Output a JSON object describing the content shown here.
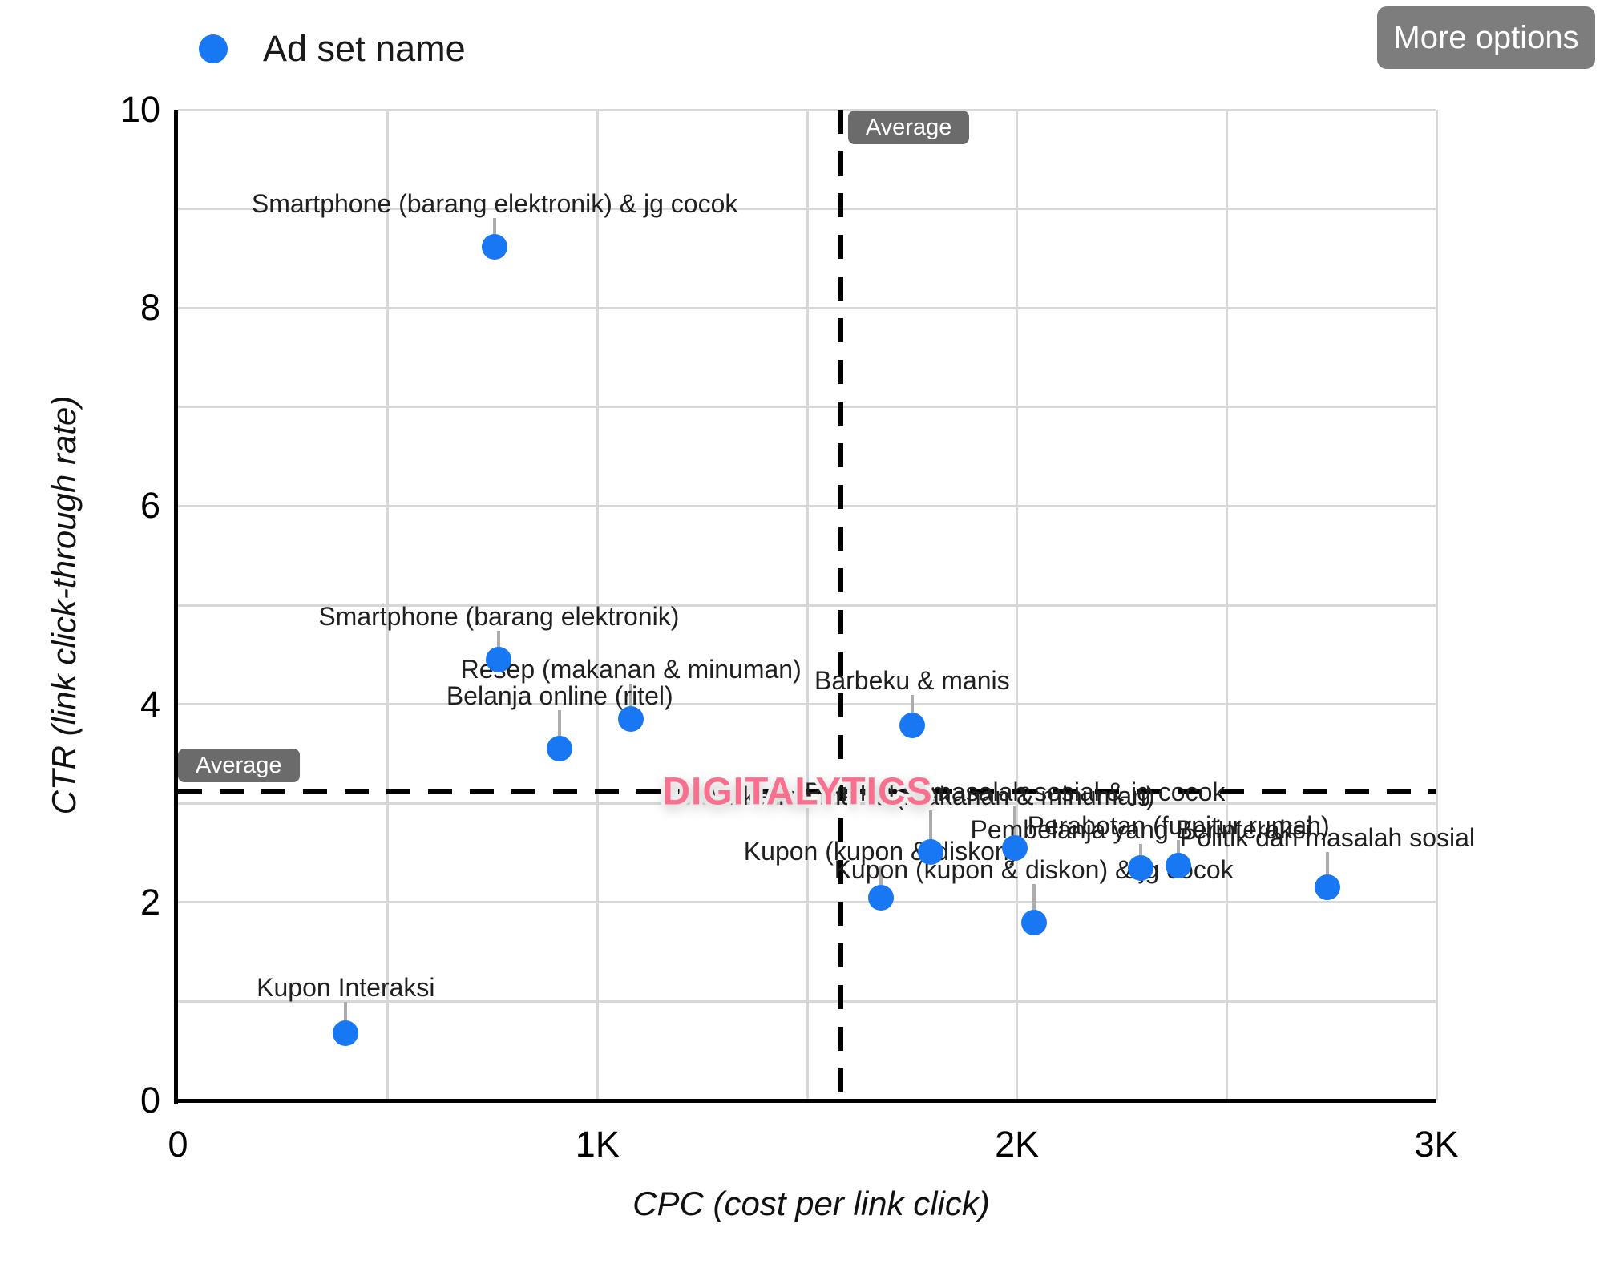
{
  "legend": {
    "series_label": "Ad set name"
  },
  "toolbar": {
    "more_options_label": "More options"
  },
  "watermark": {
    "text": "DIGITALYTICS"
  },
  "chart_data": {
    "type": "scatter",
    "title": "",
    "xlabel": "CPC (cost per link click)",
    "ylabel": "CTR (link click-through rate)",
    "xlim": [
      0,
      3000
    ],
    "ylim": [
      0,
      10
    ],
    "x_ticks": [
      {
        "value": 0,
        "label": "0"
      },
      {
        "value": 1000,
        "label": "1K"
      },
      {
        "value": 2000,
        "label": "2K"
      },
      {
        "value": 3000,
        "label": "3K"
      }
    ],
    "y_ticks": [
      {
        "value": 0,
        "label": "0"
      },
      {
        "value": 2,
        "label": "2"
      },
      {
        "value": 4,
        "label": "4"
      },
      {
        "value": 6,
        "label": "6"
      },
      {
        "value": 8,
        "label": "8"
      },
      {
        "value": 10,
        "label": "10"
      }
    ],
    "x_grid_step": 500,
    "y_grid_step": 1,
    "grid": true,
    "legend_position": "top-left",
    "series_name": "Ad set name",
    "average_lines": [
      {
        "axis": "x",
        "value": 1580,
        "label": "Average"
      },
      {
        "axis": "y",
        "value": 3.12,
        "label": "Average"
      }
    ],
    "points": [
      {
        "name": "Smartphone (barang elektronik) & jg cocok",
        "cpc": 755,
        "ctr": 8.62
      },
      {
        "name": "Smartphone (barang elektronik)",
        "cpc": 765,
        "ctr": 4.45
      },
      {
        "name": "Resep (makanan & minuman)",
        "cpc": 1080,
        "ctr": 3.85
      },
      {
        "name": "Belanja online (ritel)",
        "cpc": 910,
        "ctr": 3.55
      },
      {
        "name": "Barbeku & manis",
        "cpc": 1750,
        "ctr": 3.79
      },
      {
        "name": "Makanan manis (makanan & minuman)",
        "cpc": 1795,
        "ctr": 2.51
      },
      {
        "name": "Politik dan masalah sosial & jg cocok",
        "cpc": 1995,
        "ctr": 2.55
      },
      {
        "name": "Pembelanja yang Berinteraksi",
        "cpc": 2295,
        "ctr": 2.35
      },
      {
        "name": "Perabotan (furnitur rumah)",
        "cpc": 2385,
        "ctr": 2.37
      },
      {
        "name": "Kupon (kupon & diskon)",
        "cpc": 1675,
        "ctr": 2.05
      },
      {
        "name": "Kupon (kupon & diskon) & jg cocok",
        "cpc": 2040,
        "ctr": 1.8
      },
      {
        "name": "Politik dan masalah sosial",
        "cpc": 2740,
        "ctr": 2.15
      },
      {
        "name": "Kupon Interaksi",
        "cpc": 400,
        "ctr": 0.68
      }
    ]
  },
  "colors": {
    "point": "#1877f2",
    "grid": "#d7d7d7",
    "axis": "#000000",
    "average_line": "#000000",
    "badge_bg": "#6b6b6b",
    "badge_text": "#ffffff",
    "button_bg": "#7d7d7d",
    "button_text": "#ffffff",
    "watermark": "#f9708f",
    "leader": "#acacac",
    "label_text": "#1f1f1f"
  }
}
